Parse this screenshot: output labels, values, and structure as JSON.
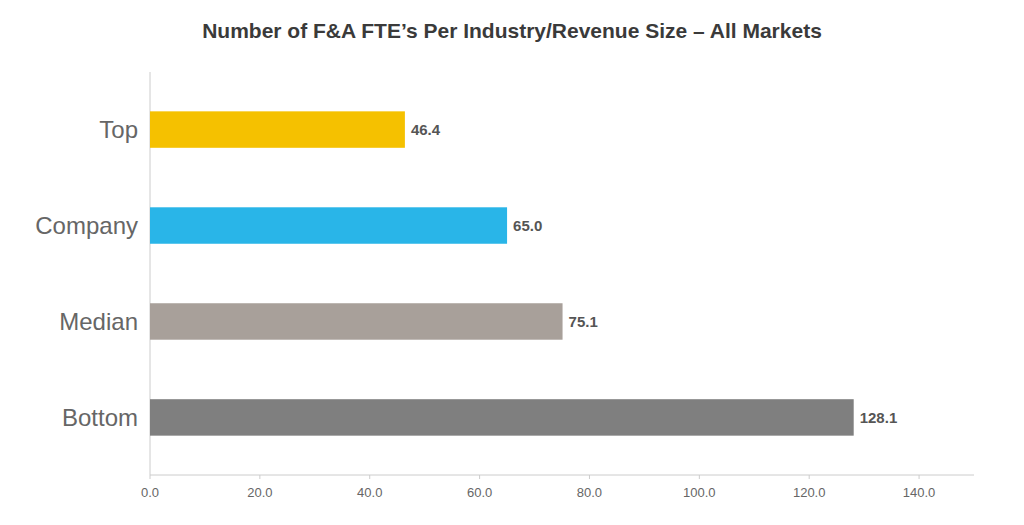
{
  "chart_data": {
    "type": "bar",
    "orientation": "horizontal",
    "title": "Number of F&A FTE’s Per Industry/Revenue Size – All Markets",
    "categories": [
      "Bottom",
      "Median",
      "Company",
      "Top"
    ],
    "values": [
      128.1,
      75.1,
      65.0,
      46.4
    ],
    "value_labels": [
      "128.1",
      "75.1",
      "65.0",
      "46.4"
    ],
    "colors": [
      "#7f7f7f",
      "#a8a09a",
      "#29b5e8",
      "#f5c100"
    ],
    "xlim": [
      0,
      150
    ],
    "xticks": [
      {
        "value": 0,
        "label": "0.0"
      },
      {
        "value": 20,
        "label": "20.0"
      },
      {
        "value": 40,
        "label": "40.0"
      },
      {
        "value": 60,
        "label": "60.0"
      },
      {
        "value": 80,
        "label": "80.0"
      },
      {
        "value": 100,
        "label": "100.0"
      },
      {
        "value": 120,
        "label": "120.0"
      },
      {
        "value": 140,
        "label": "140.0"
      }
    ],
    "grid": false,
    "data_labels": true
  }
}
